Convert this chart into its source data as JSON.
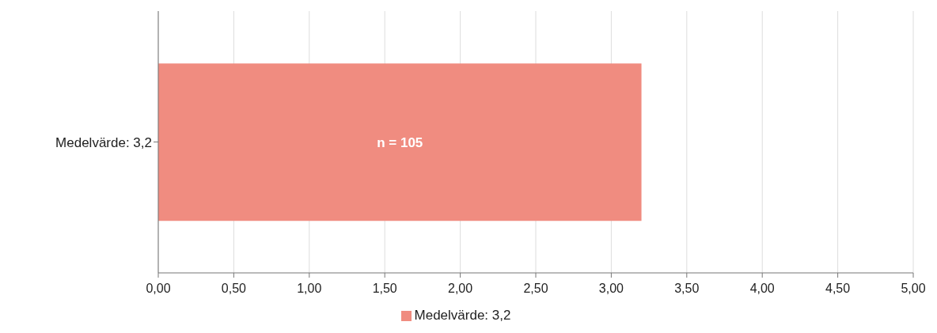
{
  "chart_data": {
    "type": "bar",
    "orientation": "horizontal",
    "categories": [
      "Medelvärde: 3,2"
    ],
    "series": [
      {
        "name": "Medelvärde: 3,2",
        "color": "#f08c80",
        "values": [
          3.2
        ]
      }
    ],
    "annotations": [
      "n = 105"
    ],
    "xlim": [
      0,
      5
    ],
    "xticks": [
      {
        "value": 0,
        "label": "0,00"
      },
      {
        "value": 0.5,
        "label": "0,50"
      },
      {
        "value": 1,
        "label": "1,00"
      },
      {
        "value": 1.5,
        "label": "1,50"
      },
      {
        "value": 2,
        "label": "2,00"
      },
      {
        "value": 2.5,
        "label": "2,50"
      },
      {
        "value": 3,
        "label": "3,00"
      },
      {
        "value": 3.5,
        "label": "3,50"
      },
      {
        "value": 4,
        "label": "4,00"
      },
      {
        "value": 4.5,
        "label": "4,50"
      },
      {
        "value": 5,
        "label": "5,00"
      }
    ],
    "grid": "x",
    "legend": "bottom"
  }
}
